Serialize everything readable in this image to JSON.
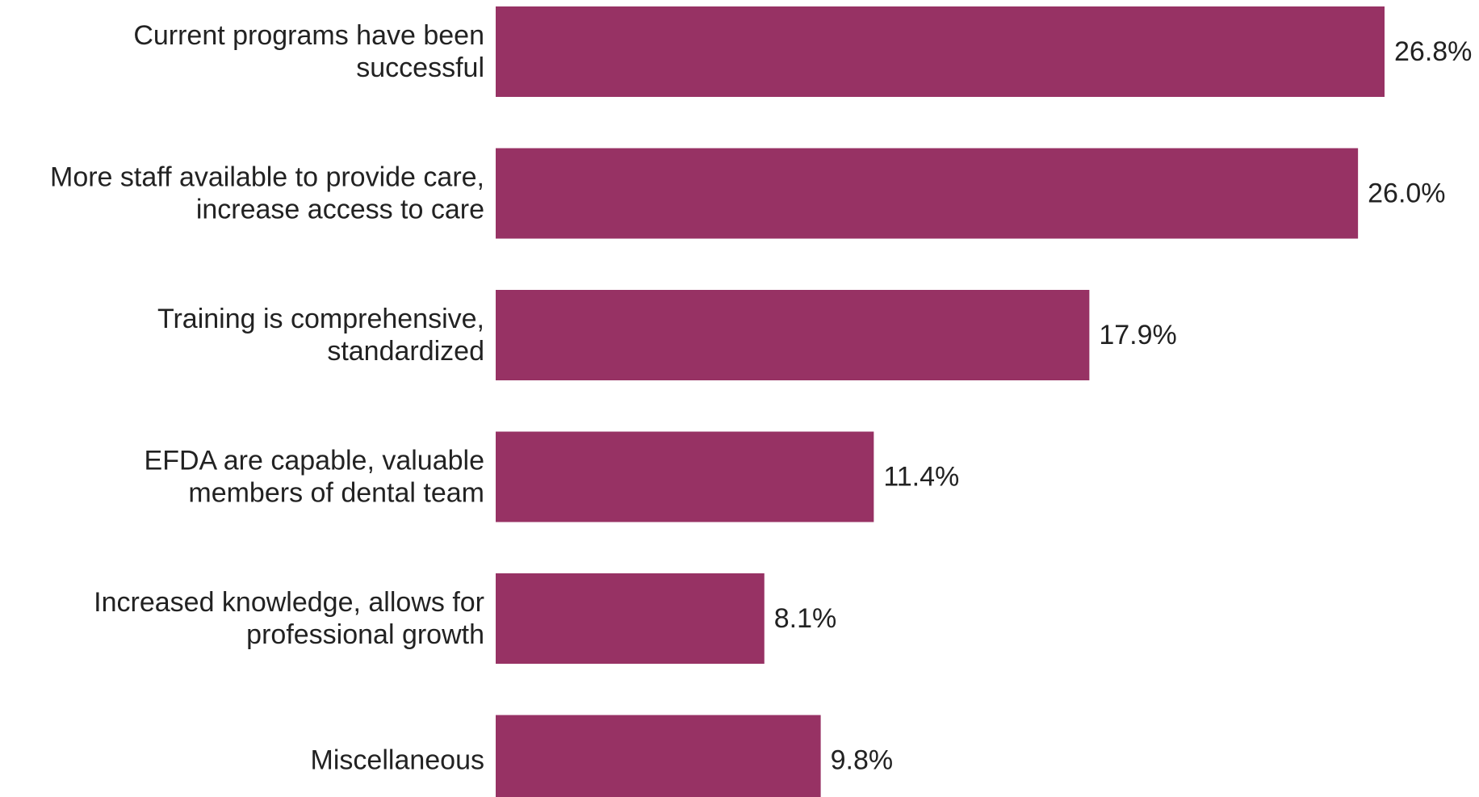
{
  "chart_data": {
    "type": "bar",
    "orientation": "horizontal",
    "categories": [
      [
        "Current programs have been",
        "successful"
      ],
      [
        "More staff available to provide care,",
        "increase access to care"
      ],
      [
        "Training is comprehensive,",
        "standardized"
      ],
      [
        "EFDA are capable, valuable",
        "members of dental team"
      ],
      [
        "Increased knowledge, allows for",
        "professional growth"
      ],
      [
        "Miscellaneous"
      ]
    ],
    "values": [
      26.8,
      26.0,
      17.9,
      11.4,
      8.1,
      9.8
    ],
    "value_labels": [
      "26.8%",
      "26.0%",
      "17.9%",
      "11.4%",
      "8.1%",
      "9.8%"
    ],
    "title": "",
    "xlabel": "",
    "ylabel": "",
    "xlim": [
      0,
      26.8
    ],
    "grid": false,
    "legend": "none",
    "colors": {
      "bar": "#973264",
      "text": "#222222"
    }
  }
}
